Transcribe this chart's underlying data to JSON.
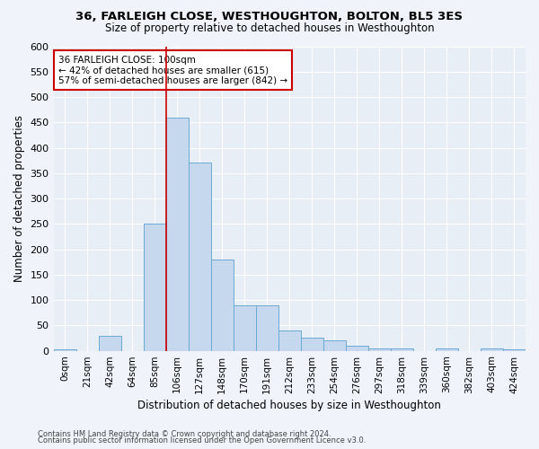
{
  "title": "36, FARLEIGH CLOSE, WESTHOUGHTON, BOLTON, BL5 3ES",
  "subtitle": "Size of property relative to detached houses in Westhoughton",
  "xlabel": "Distribution of detached houses by size in Westhoughton",
  "ylabel": "Number of detached properties",
  "categories": [
    "0sqm",
    "21sqm",
    "42sqm",
    "64sqm",
    "85sqm",
    "106sqm",
    "127sqm",
    "148sqm",
    "170sqm",
    "191sqm",
    "212sqm",
    "233sqm",
    "254sqm",
    "276sqm",
    "297sqm",
    "318sqm",
    "339sqm",
    "360sqm",
    "382sqm",
    "403sqm",
    "424sqm"
  ],
  "bar_heights": [
    2,
    0,
    30,
    0,
    250,
    460,
    370,
    180,
    90,
    90,
    40,
    25,
    20,
    10,
    5,
    5,
    0,
    5,
    0,
    5,
    2
  ],
  "bar_color": "#c5d8ee",
  "bar_edge_color": "#6aaad4",
  "bg_color": "#e8eef5",
  "grid_color": "#ffffff",
  "vline_pos": 4.5,
  "vline_color": "#cc0000",
  "annotation_text": "36 FARLEIGH CLOSE: 100sqm\n← 42% of detached houses are smaller (615)\n57% of semi-detached houses are larger (842) →",
  "annotation_box_color": "#ffffff",
  "annotation_box_edge": "#cc0000",
  "ylim": [
    0,
    600
  ],
  "yticks": [
    0,
    50,
    100,
    150,
    200,
    250,
    300,
    350,
    400,
    450,
    500,
    550,
    600
  ],
  "fig_bg": "#f0f4fa",
  "footnote1": "Contains HM Land Registry data © Crown copyright and database right 2024.",
  "footnote2": "Contains public sector information licensed under the Open Government Licence v3.0."
}
